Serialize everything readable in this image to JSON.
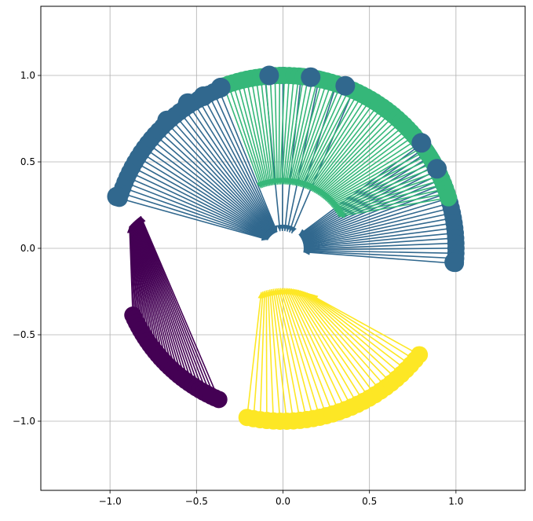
{
  "chart_data": {
    "type": "scatter",
    "title": "",
    "xlabel": "",
    "ylabel": "",
    "xlim": [
      -1.4,
      1.4
    ],
    "ylim": [
      -1.4,
      1.4
    ],
    "grid": true,
    "x_ticks": [
      -1.0,
      -0.5,
      0.0,
      0.5,
      1.0
    ],
    "y_ticks": [
      -1.0,
      -0.5,
      0.0,
      0.5,
      1.0
    ],
    "x_tick_labels": [
      "−1.0",
      "−0.5",
      "0.0",
      "0.5",
      "1.0"
    ],
    "y_tick_labels": [
      "−1.0",
      "−0.5",
      "0.0",
      "0.5",
      "1.0"
    ],
    "marks": "large circular markers with arrows drawn from each point toward its cluster centre",
    "clusters": [
      {
        "color": "#440154",
        "points_arc": {
          "radius": 0.95,
          "angle_start_deg": 204,
          "angle_end_deg": 247,
          "count": 30
        },
        "arrow_tip_arc": {
          "radius": 0.42,
          "angle_start_deg": 139,
          "angle_end_deg": 127,
          "count": 30
        },
        "arrow_offset": [
          -0.57,
          -0.15
        ]
      },
      {
        "color": "#fde725",
        "points_arc": {
          "radius": 1.0,
          "angle_start_deg": 258,
          "angle_end_deg": 322,
          "count": 30
        },
        "arrow_tip_arc": {
          "radius": 0.35,
          "angle_start_deg": 111,
          "angle_end_deg": 62,
          "count": 30
        },
        "arrow_offset": [
          0.0,
          -0.58
        ]
      },
      {
        "color": "#31688e",
        "points_arc": {
          "radius": 0.99,
          "angle_start_deg": 163,
          "angle_end_deg": 112,
          "count": 28
        },
        "arrow_tip_arc": {
          "radius": 0.1,
          "angle_start_deg": 150,
          "angle_end_deg": 110,
          "count": 28
        },
        "arrow_offset": [
          0.0,
          0.0
        ]
      },
      {
        "color": "#31688e",
        "points_arc": {
          "radius": 1.0,
          "angle_start_deg": 96,
          "angle_end_deg": 66,
          "count": 6
        },
        "arrow_tip_arc": {
          "radius": 0.1,
          "angle_start_deg": 100,
          "angle_end_deg": 60,
          "count": 6
        },
        "arrow_offset": [
          0.0,
          0.0
        ]
      },
      {
        "color": "#31688e",
        "points_arc": {
          "radius": 1.0,
          "angle_start_deg": 37,
          "angle_end_deg": -5,
          "count": 26
        },
        "arrow_tip_arc": {
          "radius": 0.12,
          "angle_start_deg": 40,
          "angle_end_deg": -10,
          "count": 26
        },
        "arrow_offset": [
          0.0,
          0.0
        ]
      },
      {
        "color": "#35b779",
        "points_arc": {
          "radius": 1.0,
          "angle_start_deg": 110,
          "angle_end_deg": 17,
          "count": 60
        },
        "arrow_tip_arc": {
          "radius": 0.37,
          "angle_start_deg": 110,
          "angle_end_deg": 30,
          "count": 60
        },
        "arrow_offset": [
          0.0,
          0.0
        ]
      }
    ],
    "highlighted_points": [
      {
        "color": "#31688e",
        "x": -0.96,
        "y": 0.3
      },
      {
        "color": "#31688e",
        "x": -0.67,
        "y": 0.74
      },
      {
        "color": "#31688e",
        "x": -0.55,
        "y": 0.84
      },
      {
        "color": "#31688e",
        "x": -0.46,
        "y": 0.88
      },
      {
        "color": "#31688e",
        "x": -0.36,
        "y": 0.93
      },
      {
        "color": "#31688e",
        "x": -0.08,
        "y": 1.0
      },
      {
        "color": "#31688e",
        "x": 0.16,
        "y": 0.99
      },
      {
        "color": "#31688e",
        "x": 0.36,
        "y": 0.94
      },
      {
        "color": "#31688e",
        "x": 0.8,
        "y": 0.61
      },
      {
        "color": "#31688e",
        "x": 0.89,
        "y": 0.46
      },
      {
        "color": "#31688e",
        "x": 0.99,
        "y": -0.08
      }
    ]
  }
}
